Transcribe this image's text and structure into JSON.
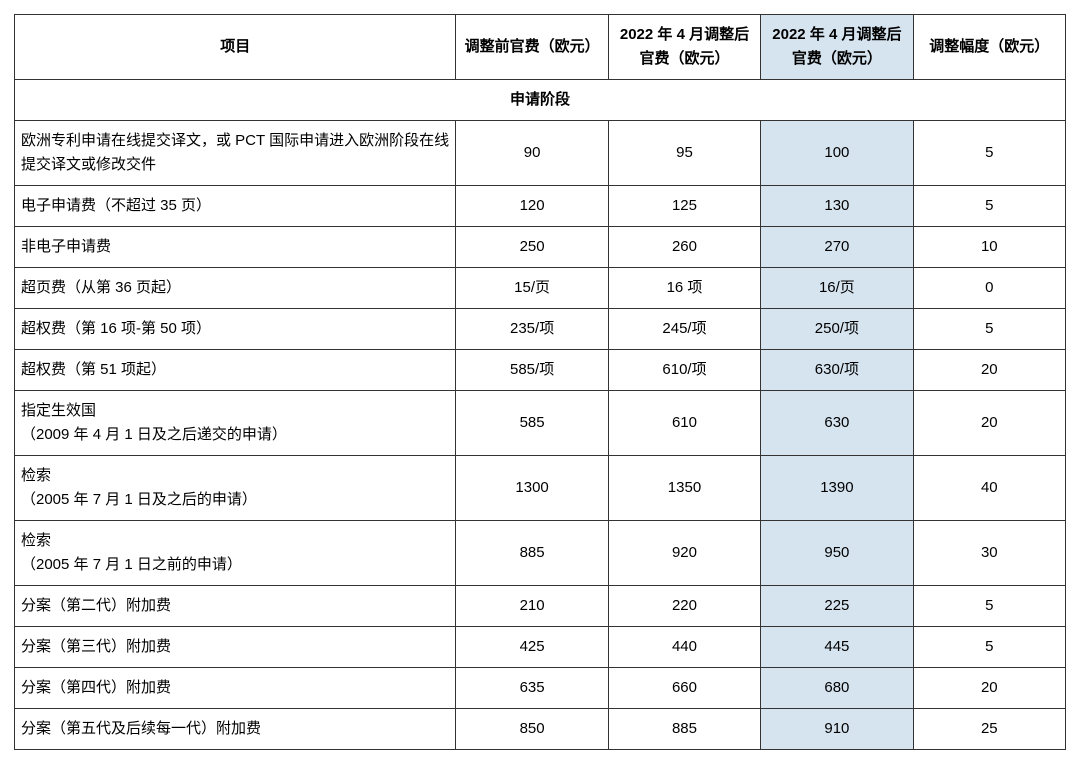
{
  "table": {
    "columns": [
      "项目",
      "调整前官费（欧元）",
      "2022 年 4 月调整后官费（欧元）",
      "2022 年 4 月调整后官费（欧元）",
      "调整幅度（欧元）"
    ],
    "section_title": "申请阶段",
    "highlight_column_index": 3,
    "highlight_color": "#d6e4f0",
    "border_color": "#333333",
    "rows": [
      {
        "item": "欧洲专利申请在线提交译文，或 PCT 国际申请进入欧洲阶段在线提交译文或修改交件",
        "before": "90",
        "after1": "95",
        "after2": "100",
        "diff": "5"
      },
      {
        "item": "电子申请费（不超过 35 页）",
        "before": "120",
        "after1": "125",
        "after2": "130",
        "diff": "5"
      },
      {
        "item": "非电子申请费",
        "before": "250",
        "after1": "260",
        "after2": "270",
        "diff": "10"
      },
      {
        "item": "超页费（从第 36 页起）",
        "before": "15/页",
        "after1": "16 项",
        "after2": "16/页",
        "diff": "0"
      },
      {
        "item": "超权费（第 16 项-第 50 项）",
        "before": "235/项",
        "after1": "245/项",
        "after2": "250/项",
        "diff": "5"
      },
      {
        "item": "超权费（第 51 项起）",
        "before": "585/项",
        "after1": "610/项",
        "after2": "630/项",
        "diff": "20"
      },
      {
        "item": "指定生效国\n（2009 年 4 月 1 日及之后递交的申请）",
        "before": "585",
        "after1": "610",
        "after2": "630",
        "diff": "20"
      },
      {
        "item": "检索\n（2005 年 7 月 1 日及之后的申请）",
        "before": "1300",
        "after1": "1350",
        "after2": "1390",
        "diff": "40"
      },
      {
        "item": "检索\n（2005 年 7 月 1 日之前的申请）",
        "before": "885",
        "after1": "920",
        "after2": "950",
        "diff": "30"
      },
      {
        "item": "分案（第二代）附加费",
        "before": "210",
        "after1": "220",
        "after2": "225",
        "diff": "5"
      },
      {
        "item": "分案（第三代）附加费",
        "before": "425",
        "after1": "440",
        "after2": "445",
        "diff": "5"
      },
      {
        "item": "分案（第四代）附加费",
        "before": "635",
        "after1": "660",
        "after2": "680",
        "diff": "20"
      },
      {
        "item": "分案（第五代及后续每一代）附加费",
        "before": "850",
        "after1": "885",
        "after2": "910",
        "diff": "25"
      }
    ]
  }
}
